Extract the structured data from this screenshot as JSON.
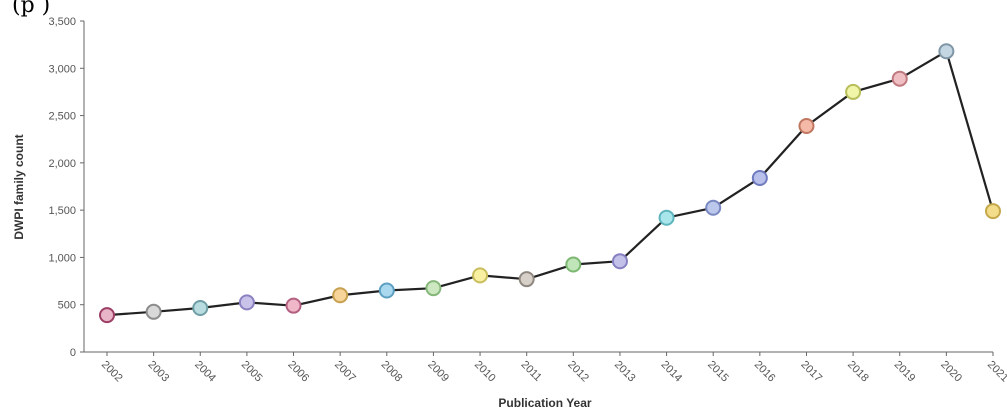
{
  "header_fragment": "(p   )",
  "chart_data": {
    "type": "line",
    "xlabel": "Publication Year",
    "ylabel": "DWPI family count",
    "ylim": [
      0,
      3500
    ],
    "yticks": [
      0,
      500,
      1000,
      1500,
      2000,
      2500,
      3000,
      3500
    ],
    "ytick_labels": [
      "0",
      "500",
      "1,000",
      "1,500",
      "2,000",
      "2,500",
      "3,000",
      "3,500"
    ],
    "categories": [
      "2002",
      "2003",
      "2004",
      "2005",
      "2006",
      "2007",
      "2008",
      "2009",
      "2010",
      "2011",
      "2012",
      "2013",
      "2014",
      "2015",
      "2016",
      "2017",
      "2018",
      "2019",
      "2020",
      "2021"
    ],
    "values": [
      390,
      425,
      465,
      525,
      490,
      600,
      650,
      675,
      810,
      770,
      925,
      960,
      1420,
      1525,
      1840,
      2390,
      2750,
      2890,
      3180,
      1490
    ],
    "grid": false,
    "line_color": "#222222",
    "marker_colors": [
      "#e8b4c8",
      "#d9d9d9",
      "#b8dce0",
      "#c9c3ea",
      "#f0b7c9",
      "#f7d59a",
      "#a9d8ef",
      "#cde8c1",
      "#f8efa0",
      "#d6d0c8",
      "#bfe5b8",
      "#c3c0ea",
      "#a8e6ec",
      "#bcc7ec",
      "#b9c1ea",
      "#f5b9a8",
      "#f0f5a8",
      "#f0bfc3",
      "#c3d6e2",
      "#f3dc8a"
    ],
    "marker_stroke_colors": [
      "#9c3d63",
      "#8c8c8c",
      "#6f9fa5",
      "#8a82c0",
      "#b36080",
      "#c7a050",
      "#5d9fc0",
      "#86b77a",
      "#c9be5e",
      "#8f8880",
      "#7cb771",
      "#8680c0",
      "#5fb5bd",
      "#7a88c2",
      "#6f7bc0",
      "#c07760",
      "#b8be5a",
      "#bf7a80",
      "#7f96a6",
      "#c4a84a"
    ]
  }
}
